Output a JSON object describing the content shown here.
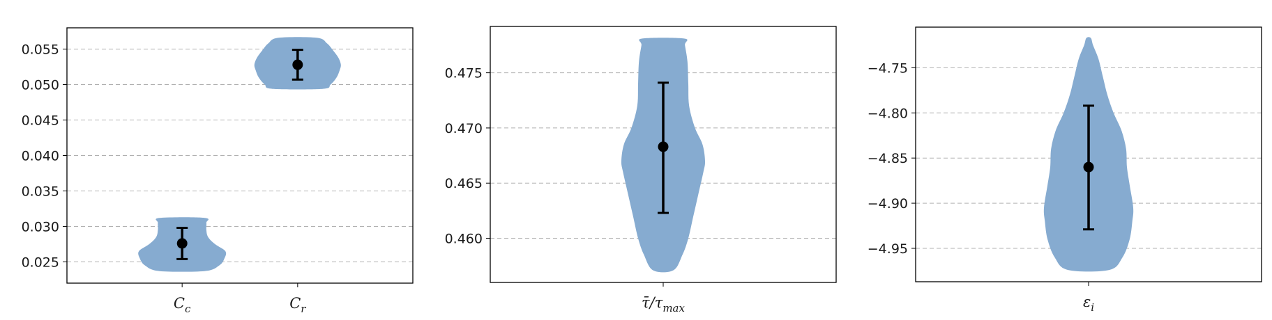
{
  "chart_data": [
    {
      "type": "violin",
      "ylim": [
        0.022,
        0.058
      ],
      "yticks": [
        "0.025",
        "0.030",
        "0.035",
        "0.040",
        "0.045",
        "0.050",
        "0.055"
      ],
      "grid": true,
      "grid_axis": "y",
      "categories": [
        {
          "base": "C",
          "sub": "c"
        },
        {
          "base": "C",
          "sub": "r"
        }
      ],
      "series": [
        {
          "mean": 0.0276,
          "lower": 0.0254,
          "upper": 0.0298,
          "profile": [
            [
              0.0237,
              0.52
            ],
            [
              0.0245,
              0.86
            ],
            [
              0.0255,
              0.98
            ],
            [
              0.0265,
              1.0
            ],
            [
              0.0275,
              0.76
            ],
            [
              0.0285,
              0.6
            ],
            [
              0.0295,
              0.56
            ],
            [
              0.0305,
              0.56
            ],
            [
              0.0312,
              0.52
            ]
          ]
        },
        {
          "mean": 0.0528,
          "lower": 0.0507,
          "upper": 0.0549,
          "profile": [
            [
              0.0494,
              0.58
            ],
            [
              0.05,
              0.76
            ],
            [
              0.051,
              0.9
            ],
            [
              0.052,
              0.97
            ],
            [
              0.0528,
              1.0
            ],
            [
              0.0538,
              0.94
            ],
            [
              0.0548,
              0.82
            ],
            [
              0.0558,
              0.68
            ],
            [
              0.0566,
              0.44
            ]
          ]
        }
      ],
      "color": "#86abd0",
      "marker_color": "#000000"
    },
    {
      "type": "violin",
      "ylim": [
        0.456,
        0.4792
      ],
      "yticks": [
        "0.460",
        "0.465",
        "0.470",
        "0.475"
      ],
      "grid": true,
      "grid_axis": "y",
      "categories": [
        {
          "base": "τ̄/τ",
          "sub": "max"
        }
      ],
      "series": [
        {
          "mean": 0.4683,
          "lower": 0.4623,
          "upper": 0.4741,
          "profile": [
            [
              0.4571,
              0.24
            ],
            [
              0.4585,
              0.46
            ],
            [
              0.46,
              0.6
            ],
            [
              0.462,
              0.72
            ],
            [
              0.464,
              0.84
            ],
            [
              0.466,
              0.96
            ],
            [
              0.467,
              1.0
            ],
            [
              0.4685,
              0.94
            ],
            [
              0.47,
              0.76
            ],
            [
              0.472,
              0.62
            ],
            [
              0.474,
              0.6
            ],
            [
              0.476,
              0.58
            ],
            [
              0.4775,
              0.52
            ],
            [
              0.4781,
              0.5
            ]
          ]
        }
      ],
      "color": "#86abd0",
      "marker_color": "#000000"
    },
    {
      "type": "violin",
      "ylim": [
        -4.987,
        -4.705
      ],
      "yticks": [
        "−4.95",
        "−4.90",
        "−4.85",
        "−4.80",
        "−4.75"
      ],
      "ytick_values": [
        -4.95,
        -4.9,
        -4.85,
        -4.8,
        -4.75
      ],
      "grid": true,
      "grid_axis": "y",
      "categories": [
        {
          "base": "ε",
          "sub": "i"
        }
      ],
      "series": [
        {
          "mean": -4.86,
          "lower": -4.929,
          "upper": -4.792,
          "profile": [
            [
              -4.974,
              0.46
            ],
            [
              -4.96,
              0.76
            ],
            [
              -4.94,
              0.92
            ],
            [
              -4.92,
              0.98
            ],
            [
              -4.905,
              1.0
            ],
            [
              -4.88,
              0.92
            ],
            [
              -4.86,
              0.86
            ],
            [
              -4.84,
              0.84
            ],
            [
              -4.82,
              0.74
            ],
            [
              -4.8,
              0.56
            ],
            [
              -4.78,
              0.42
            ],
            [
              -4.76,
              0.32
            ],
            [
              -4.74,
              0.22
            ],
            [
              -4.725,
              0.1
            ],
            [
              -4.717,
              0.05
            ]
          ]
        }
      ],
      "color": "#86abd0",
      "marker_color": "#000000"
    }
  ]
}
